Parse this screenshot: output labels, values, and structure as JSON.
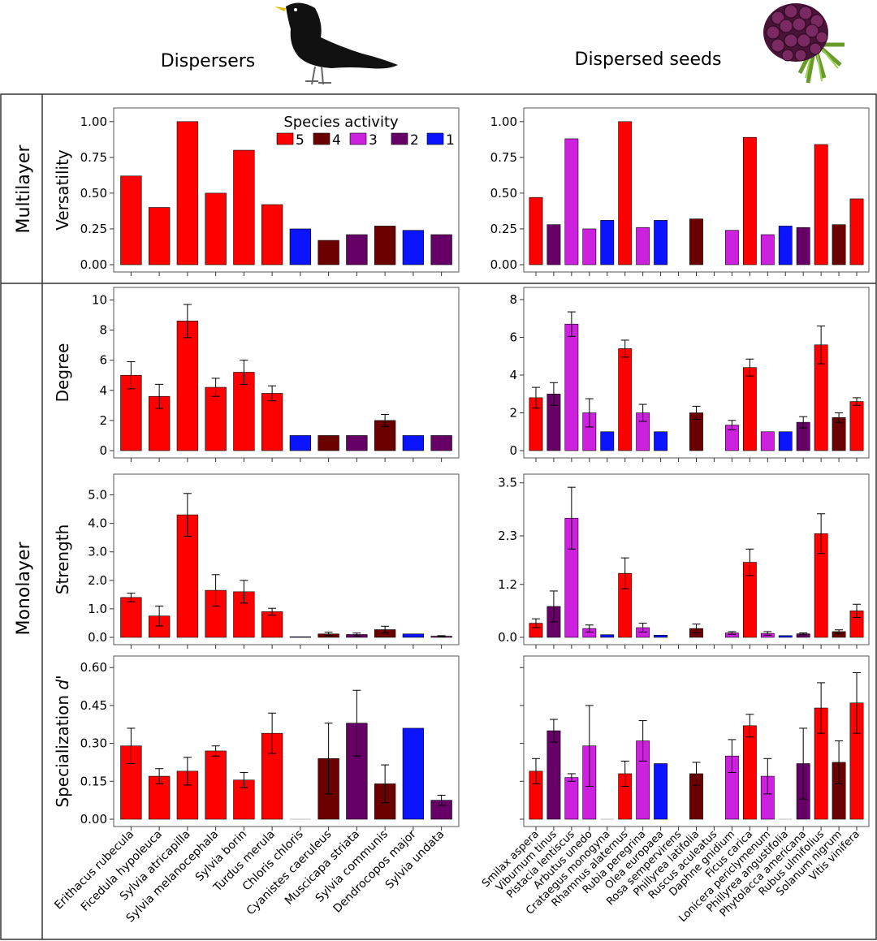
{
  "header": {
    "left_title": "Dispersers",
    "right_title": "Dispersed seeds",
    "left_icon": "blackbird-icon",
    "right_icon": "blackberry-icon"
  },
  "sections": {
    "multilayer": "Multilayer",
    "monolayer": "Monolayer"
  },
  "legend": {
    "title": "Species activity",
    "items": [
      {
        "label": "5",
        "color": "#ff0000"
      },
      {
        "label": "4",
        "color": "#6b0000"
      },
      {
        "label": "3",
        "color": "#cc22dd"
      },
      {
        "label": "2",
        "color": "#660066"
      },
      {
        "label": "1",
        "color": "#0a14ff"
      }
    ]
  },
  "colors": {
    "5": "#ff0000",
    "4": "#6b0000",
    "3": "#cc22dd",
    "2": "#660066",
    "1": "#0a14ff"
  },
  "chart_data": [
    {
      "id": "dispersers-versatility",
      "type": "bar",
      "ylabel": "Versatility",
      "ylim": [
        0,
        1.05
      ],
      "yticks": [
        0,
        0.25,
        0.5,
        0.75,
        1.0
      ],
      "yticklabels": [
        "0.00",
        "0.25",
        "0.50",
        "0.75",
        "1.00"
      ],
      "categories": [
        "Erithacus rubecula",
        "Ficedula hypoleuca",
        "Sylvia atricapilla",
        "Sylvia melanocephala",
        "Sylvia borin",
        "Turdus merula",
        "Chloris chloris",
        "Cyanistes caeruleus",
        "Muscicapa striata",
        "Sylvia communis",
        "Dendrocopos major",
        "Sylvia undata"
      ],
      "activity": [
        5,
        5,
        5,
        5,
        5,
        5,
        1,
        4,
        2,
        4,
        1,
        2
      ],
      "values": [
        0.62,
        0.4,
        1.0,
        0.5,
        0.8,
        0.42,
        0.25,
        0.17,
        0.21,
        0.27,
        0.24,
        0.21
      ]
    },
    {
      "id": "dispersers-degree",
      "type": "bar",
      "ylabel": "Degree",
      "ylim": [
        0,
        10.4
      ],
      "yticks": [
        0,
        2,
        4,
        6,
        8,
        10
      ],
      "yticklabels": [
        "0",
        "2",
        "4",
        "6",
        "8",
        "10"
      ],
      "categories": [
        "Erithacus rubecula",
        "Ficedula hypoleuca",
        "Sylvia atricapilla",
        "Sylvia melanocephala",
        "Sylvia borin",
        "Turdus merula",
        "Chloris chloris",
        "Cyanistes caeruleus",
        "Muscicapa striata",
        "Sylvia communis",
        "Dendrocopos major",
        "Sylvia undata"
      ],
      "activity": [
        5,
        5,
        5,
        5,
        5,
        5,
        1,
        4,
        2,
        4,
        1,
        2
      ],
      "values": [
        5.0,
        3.6,
        8.6,
        4.2,
        5.2,
        3.8,
        1.0,
        1.0,
        1.0,
        2.0,
        1.0,
        1.0
      ],
      "errors": [
        0.9,
        0.8,
        1.1,
        0.6,
        0.8,
        0.5,
        0,
        0,
        0,
        0.4,
        0,
        0
      ]
    },
    {
      "id": "dispersers-strength",
      "type": "bar",
      "ylabel": "Strength",
      "ylim": [
        0,
        5.5
      ],
      "yticks": [
        0,
        1,
        2,
        3,
        4,
        5
      ],
      "yticklabels": [
        "0.0",
        "1.0",
        "2.0",
        "3.0",
        "4.0",
        "5.0"
      ],
      "categories": [
        "Erithacus rubecula",
        "Ficedula hypoleuca",
        "Sylvia atricapilla",
        "Sylvia melanocephala",
        "Sylvia borin",
        "Turdus merula",
        "Chloris chloris",
        "Cyanistes caeruleus",
        "Muscicapa striata",
        "Sylvia communis",
        "Dendrocopos major",
        "Sylvia undata"
      ],
      "activity": [
        5,
        5,
        5,
        5,
        5,
        5,
        1,
        4,
        2,
        4,
        1,
        2
      ],
      "values": [
        1.4,
        0.75,
        4.3,
        1.65,
        1.6,
        0.9,
        0.02,
        0.12,
        0.1,
        0.27,
        0.12,
        0.04
      ],
      "errors": [
        0.15,
        0.35,
        0.75,
        0.55,
        0.4,
        0.12,
        0,
        0.06,
        0.05,
        0.12,
        0,
        0.02
      ]
    },
    {
      "id": "dispersers-specialization",
      "type": "bar",
      "ylabel": "Specialization d'",
      "ylim": [
        0,
        0.62
      ],
      "yticks": [
        0,
        0.15,
        0.3,
        0.45,
        0.6
      ],
      "yticklabels": [
        "0.00",
        "0.15",
        "0.30",
        "0.45",
        "0.60"
      ],
      "categories": [
        "Erithacus rubecula",
        "Ficedula hypoleuca",
        "Sylvia atricapilla",
        "Sylvia melanocephala",
        "Sylvia borin",
        "Turdus merula",
        "Chloris chloris",
        "Cyanistes caeruleus",
        "Muscicapa striata",
        "Sylvia communis",
        "Dendrocopos major",
        "Sylvia undata"
      ],
      "activity": [
        5,
        5,
        5,
        5,
        5,
        5,
        1,
        4,
        2,
        4,
        1,
        2
      ],
      "values": [
        0.29,
        0.17,
        0.19,
        0.27,
        0.155,
        0.34,
        0.0,
        0.24,
        0.38,
        0.14,
        0.36,
        0.075
      ],
      "errors": [
        0.07,
        0.03,
        0.055,
        0.02,
        0.03,
        0.08,
        0,
        0.14,
        0.13,
        0.075,
        0,
        0.02
      ]
    },
    {
      "id": "seeds-versatility",
      "type": "bar",
      "ylabel": "",
      "ylim": [
        0,
        1.05
      ],
      "yticks": [
        0,
        0.25,
        0.5,
        0.75,
        1.0
      ],
      "yticklabels": [
        "0.00",
        "0.25",
        "0.50",
        "0.75",
        "1.00"
      ],
      "categories": [
        "Smilax aspera",
        "Viburnum tinus",
        "Pistacia lentiscus",
        "Arbutus unedo",
        "Crataegus monogyna",
        "Rhamnus alaternus",
        "Rubia peregrina",
        "Olea europaea",
        "Rosa sempervirens",
        "Phillyrea latifolia",
        "Ruscus aculeatus",
        "Daphne gnidium",
        "Ficus carica",
        "Lonicera periclymenum",
        "Phillyrea angustifolia",
        "Phytolacca americana",
        "Rubus ulmifolius",
        "Solanum nigrum",
        "Vitis vinifera"
      ],
      "activity": [
        5,
        2,
        3,
        3,
        1,
        5,
        3,
        1,
        3,
        4,
        3,
        3,
        5,
        3,
        1,
        2,
        5,
        4,
        5
      ],
      "values": [
        0.47,
        0.28,
        0.88,
        0.25,
        0.31,
        1.0,
        0.26,
        0.31,
        0,
        0.32,
        0,
        0.24,
        0.89,
        0.21,
        0.27,
        0.26,
        0.84,
        0.28,
        0.46
      ]
    },
    {
      "id": "seeds-degree",
      "type": "bar",
      "ylabel": "",
      "ylim": [
        0,
        8.3
      ],
      "yticks": [
        0,
        2,
        4,
        6,
        8
      ],
      "yticklabels": [
        "0",
        "2",
        "4",
        "6",
        "8"
      ],
      "categories": [
        "Smilax aspera",
        "Viburnum tinus",
        "Pistacia lentiscus",
        "Arbutus unedo",
        "Crataegus monogyna",
        "Rhamnus alaternus",
        "Rubia peregrina",
        "Olea europaea",
        "Rosa sempervirens",
        "Phillyrea latifolia",
        "Ruscus aculeatus",
        "Daphne gnidium",
        "Ficus carica",
        "Lonicera periclymenum",
        "Phillyrea angustifolia",
        "Phytolacca americana",
        "Rubus ulmifolius",
        "Solanum nigrum",
        "Vitis vinifera"
      ],
      "activity": [
        5,
        2,
        3,
        3,
        1,
        5,
        3,
        1,
        3,
        4,
        3,
        3,
        5,
        3,
        1,
        2,
        5,
        4,
        5
      ],
      "values": [
        2.8,
        3.0,
        6.7,
        2.0,
        1.0,
        5.4,
        2.0,
        1.0,
        0,
        2.0,
        0,
        1.35,
        4.4,
        1.0,
        1.0,
        1.5,
        5.6,
        1.75,
        2.6
      ],
      "errors": [
        0.55,
        0.6,
        0.65,
        0.75,
        0,
        0.45,
        0.45,
        0,
        0,
        0.35,
        0,
        0.25,
        0.45,
        0,
        0,
        0.3,
        1.0,
        0.25,
        0.2
      ]
    },
    {
      "id": "seeds-strength",
      "type": "bar",
      "ylabel": "",
      "ylim": [
        0,
        3.55
      ],
      "yticks": [
        0,
        1.2,
        2.3,
        3.5
      ],
      "yticklabels": [
        "0.0",
        "1.2",
        "2.3",
        "3.5"
      ],
      "categories": [
        "Smilax aspera",
        "Viburnum tinus",
        "Pistacia lentiscus",
        "Arbutus unedo",
        "Crataegus monogyna",
        "Rhamnus alaternus",
        "Rubia peregrina",
        "Olea europaea",
        "Rosa sempervirens",
        "Phillyrea latifolia",
        "Ruscus aculeatus",
        "Daphne gnidium",
        "Ficus carica",
        "Lonicera periclymenum",
        "Phillyrea angustifolia",
        "Phytolacca americana",
        "Rubus ulmifolius",
        "Solanum nigrum",
        "Vitis vinifera"
      ],
      "activity": [
        5,
        2,
        3,
        3,
        1,
        5,
        3,
        1,
        3,
        4,
        3,
        3,
        5,
        3,
        1,
        2,
        5,
        4,
        5
      ],
      "values": [
        0.32,
        0.7,
        2.7,
        0.2,
        0.06,
        1.45,
        0.22,
        0.05,
        0,
        0.2,
        0,
        0.1,
        1.7,
        0.09,
        0.04,
        0.08,
        2.35,
        0.13,
        0.6
      ],
      "errors": [
        0.1,
        0.35,
        0.7,
        0.08,
        0,
        0.35,
        0.1,
        0,
        0,
        0.1,
        0,
        0.03,
        0.3,
        0.04,
        0,
        0.02,
        0.45,
        0.04,
        0.15
      ]
    },
    {
      "id": "seeds-specialization",
      "type": "bar",
      "ylabel": "",
      "ylim": [
        0,
        0.62
      ],
      "yticks": [
        0,
        0.15,
        0.3,
        0.45,
        0.6
      ],
      "yticklabels": [],
      "categories": [
        "Smilax aspera",
        "Viburnum tinus",
        "Pistacia lentiscus",
        "Arbutus unedo",
        "Crataegus monogyna",
        "Rhamnus alaternus",
        "Rubia peregrina",
        "Olea europaea",
        "Rosa sempervirens",
        "Phillyrea latifolia",
        "Ruscus aculeatus",
        "Daphne gnidium",
        "Ficus carica",
        "Lonicera periclymenum",
        "Phillyrea angustifolia",
        "Phytolacca americana",
        "Rubus ulmifolius",
        "Solanum nigrum",
        "Vitis vinifera"
      ],
      "activity": [
        5,
        2,
        3,
        3,
        1,
        5,
        3,
        1,
        3,
        4,
        3,
        3,
        5,
        3,
        1,
        2,
        5,
        4,
        5
      ],
      "values": [
        0.19,
        0.35,
        0.165,
        0.29,
        0.0,
        0.18,
        0.31,
        0.22,
        0,
        0.18,
        0,
        0.25,
        0.37,
        0.17,
        0.0,
        0.22,
        0.44,
        0.225,
        0.46
      ],
      "errors": [
        0.05,
        0.045,
        0.015,
        0.16,
        0,
        0.05,
        0.08,
        0,
        0,
        0.045,
        0,
        0.065,
        0.045,
        0.07,
        0,
        0.14,
        0.1,
        0.085,
        0.12
      ]
    }
  ]
}
